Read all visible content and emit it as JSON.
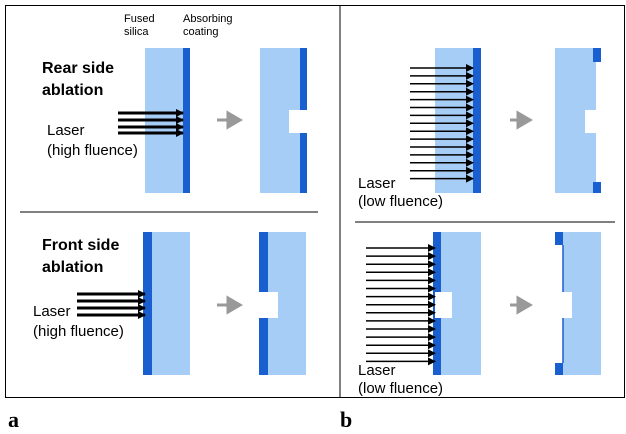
{
  "panel_a": {
    "label": "a",
    "rear": {
      "title_line1": "Rear side",
      "title_line2": "ablation",
      "laser_line1": "Laser",
      "laser_line2": "(high fluence)"
    },
    "front": {
      "title_line1": "Front side",
      "title_line2": "ablation",
      "laser_line1": "Laser",
      "laser_line2": "(high fluence)"
    },
    "legend": {
      "silica_line1": "Fused",
      "silica_line2": "silica",
      "coating_line1": "Absorbing",
      "coating_line2": "coating"
    }
  },
  "panel_b": {
    "label": "b",
    "rear": {
      "laser_line1": "Laser",
      "laser_line2": "(low fluence)"
    },
    "front": {
      "laser_line1": "Laser",
      "laser_line2": "(low fluence)"
    }
  }
}
